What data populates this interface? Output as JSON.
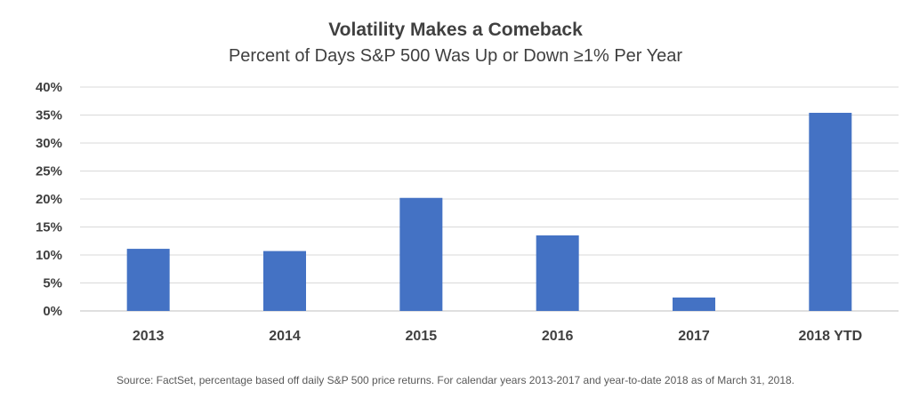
{
  "chart_data": {
    "type": "bar",
    "title": "Volatility Makes a Comeback",
    "subtitle": "Percent of Days S&P 500 Was Up or Down ≥1% Per Year",
    "categories": [
      "2013",
      "2014",
      "2015",
      "2016",
      "2017",
      "2018 YTD"
    ],
    "values": [
      11.1,
      10.7,
      20.2,
      13.5,
      2.4,
      35.4
    ],
    "ylim": [
      0,
      40
    ],
    "yticks": [
      0,
      5,
      10,
      15,
      20,
      25,
      30,
      35,
      40
    ],
    "ytick_labels": [
      "0%",
      "5%",
      "10%",
      "15%",
      "20%",
      "25%",
      "30%",
      "35%",
      "40%"
    ],
    "xlabel": "",
    "ylabel": "",
    "grid": true,
    "bar_color": "#4472c4",
    "source": "Source: FactSet, percentage based off daily S&P 500 price returns. For calendar years 2013-2017 and year-to-date 2018 as of March 31, 2018."
  }
}
